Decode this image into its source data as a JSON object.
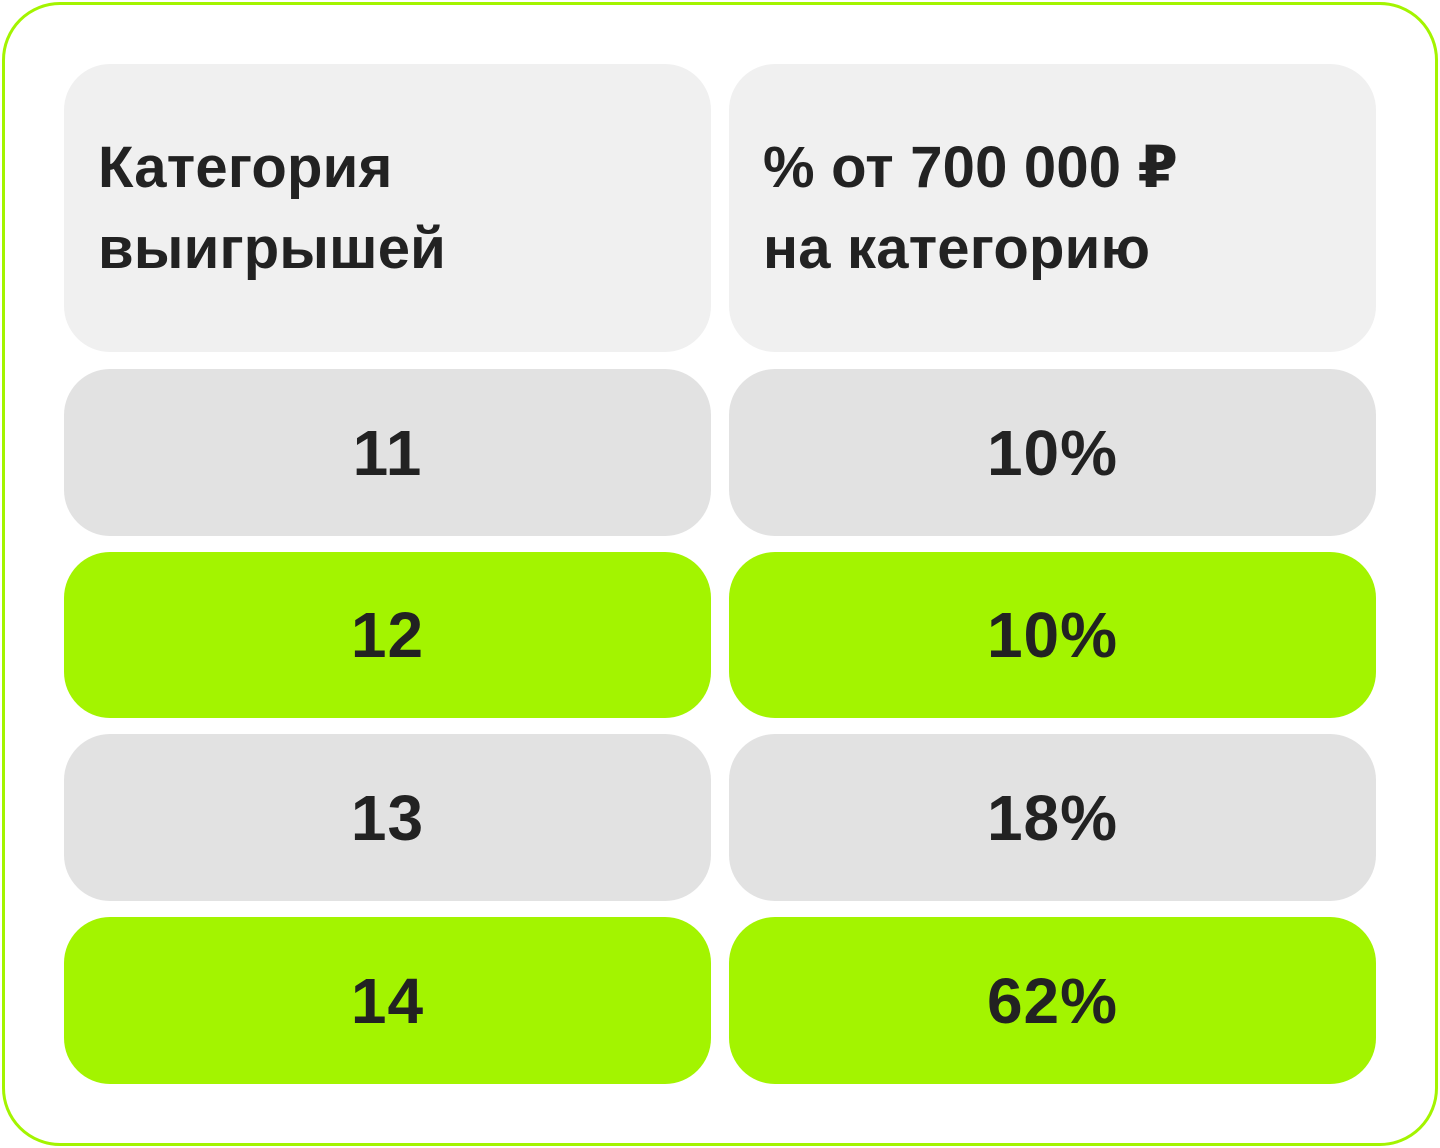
{
  "colors": {
    "accent": "#a3f400",
    "header_bg": "#f0f0f0",
    "row_gray": "#e2e2e2",
    "text": "#222222",
    "background": "#ffffff"
  },
  "table": {
    "headers": [
      [
        "Категория",
        "выигрышей"
      ],
      [
        "% от 700 000 ₽",
        "на категорию"
      ]
    ],
    "rows": [
      {
        "category": "11",
        "percent": "10%",
        "highlight": false
      },
      {
        "category": "12",
        "percent": "10%",
        "highlight": true
      },
      {
        "category": "13",
        "percent": "18%",
        "highlight": false
      },
      {
        "category": "14",
        "percent": "62%",
        "highlight": true
      }
    ]
  }
}
